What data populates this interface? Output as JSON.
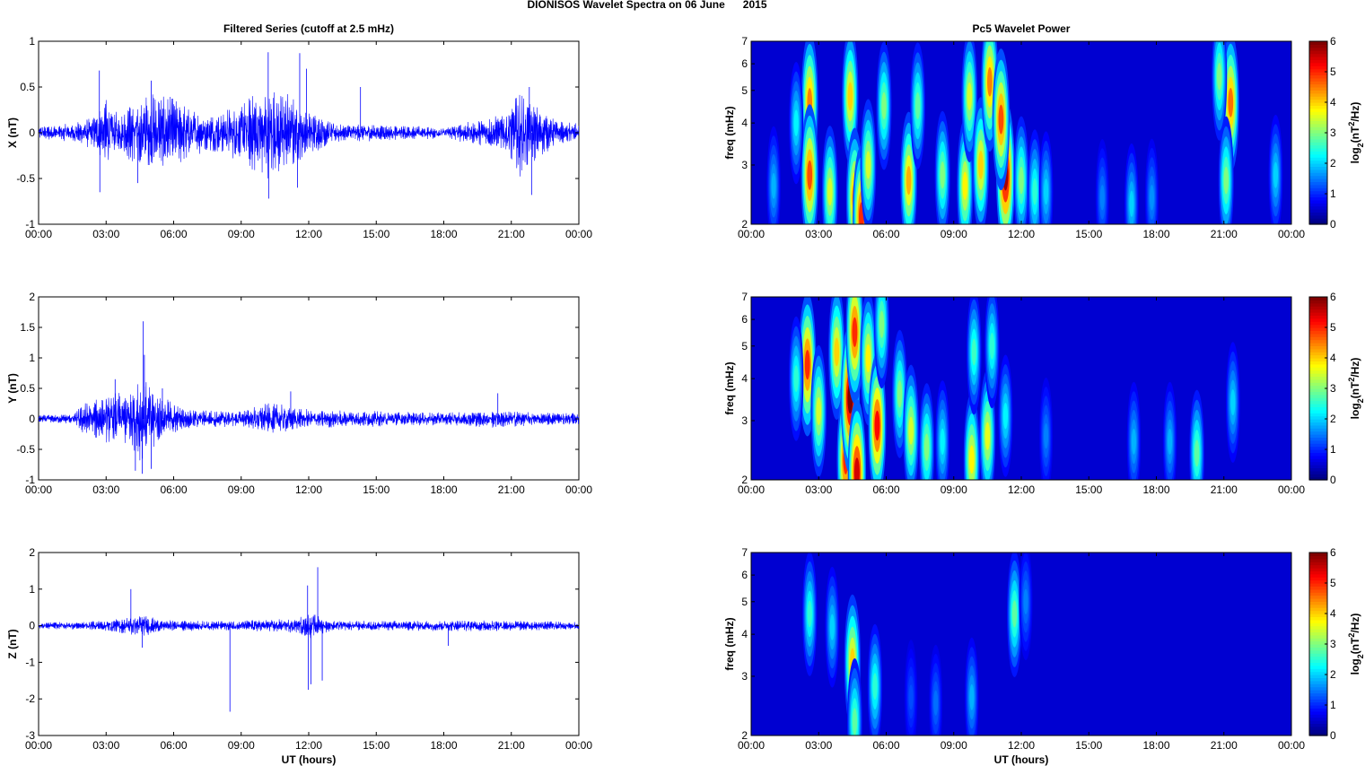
{
  "figure": {
    "title": "DIONISOS Wavelet Spectra on 06 June      2015",
    "left_column_title": "Filtered Series (cutoff at 2.5 mHz)",
    "right_column_title": "Pc5 Wavelet Power",
    "x_axis_label": "UT (hours)"
  },
  "chart_data": [
    {
      "type": "line",
      "panel": "X",
      "ylabel": "X (nT)",
      "ylim": [
        -1,
        1
      ],
      "yticks": [
        -1,
        -0.5,
        0,
        0.5,
        1
      ],
      "ytick_labels": [
        "-1",
        "-0.5",
        "0",
        "0.5",
        "1"
      ],
      "xlim_hours": [
        0,
        24
      ],
      "xtick_labels": [
        "00:00",
        "03:00",
        "06:00",
        "09:00",
        "12:00",
        "15:00",
        "18:00",
        "21:00",
        "00:00"
      ],
      "color": "#0000ff",
      "envelope": [
        {
          "t": 0,
          "amp": 0.06
        },
        {
          "t": 1.5,
          "amp": 0.08
        },
        {
          "t": 2.5,
          "amp": 0.15
        },
        {
          "t": 3.0,
          "amp": 0.3
        },
        {
          "t": 3.5,
          "amp": 0.18
        },
        {
          "t": 4.5,
          "amp": 0.3
        },
        {
          "t": 5.0,
          "amp": 0.35
        },
        {
          "t": 6.0,
          "amp": 0.3
        },
        {
          "t": 7.5,
          "amp": 0.15
        },
        {
          "t": 9.0,
          "amp": 0.25
        },
        {
          "t": 10.0,
          "amp": 0.4
        },
        {
          "t": 11.0,
          "amp": 0.35
        },
        {
          "t": 12.0,
          "amp": 0.18
        },
        {
          "t": 13.5,
          "amp": 0.08
        },
        {
          "t": 18.0,
          "amp": 0.05
        },
        {
          "t": 20.5,
          "amp": 0.15
        },
        {
          "t": 21.5,
          "amp": 0.4
        },
        {
          "t": 22.0,
          "amp": 0.25
        },
        {
          "t": 23.0,
          "amp": 0.1
        },
        {
          "t": 24.0,
          "amp": 0.08
        }
      ],
      "spikes": [
        {
          "t": 2.7,
          "v": 0.68
        },
        {
          "t": 2.72,
          "v": -0.65
        },
        {
          "t": 4.4,
          "v": -0.55
        },
        {
          "t": 5.0,
          "v": 0.57
        },
        {
          "t": 10.2,
          "v": 0.88
        },
        {
          "t": 10.22,
          "v": -0.72
        },
        {
          "t": 11.6,
          "v": 0.87
        },
        {
          "t": 11.5,
          "v": -0.6
        },
        {
          "t": 11.9,
          "v": 0.7
        },
        {
          "t": 14.3,
          "v": 0.5
        },
        {
          "t": 21.9,
          "v": -0.68
        },
        {
          "t": 21.8,
          "v": 0.5
        }
      ]
    },
    {
      "type": "line",
      "panel": "Y",
      "ylabel": "Y (nT)",
      "ylim": [
        -1,
        2
      ],
      "yticks": [
        -1,
        -0.5,
        0,
        0.5,
        1,
        1.5,
        2
      ],
      "ytick_labels": [
        "-1",
        "-0.5",
        "0",
        "0.5",
        "1",
        "1.5",
        "2"
      ],
      "xlim_hours": [
        0,
        24
      ],
      "xtick_labels": [
        "00:00",
        "03:00",
        "06:00",
        "09:00",
        "12:00",
        "15:00",
        "18:00",
        "21:00",
        "00:00"
      ],
      "color": "#0000ff",
      "envelope": [
        {
          "t": 0,
          "amp": 0.05
        },
        {
          "t": 1.5,
          "amp": 0.06
        },
        {
          "t": 2.0,
          "amp": 0.2
        },
        {
          "t": 3.0,
          "amp": 0.3
        },
        {
          "t": 4.0,
          "amp": 0.4
        },
        {
          "t": 4.6,
          "amp": 0.55
        },
        {
          "t": 5.5,
          "amp": 0.3
        },
        {
          "t": 6.5,
          "amp": 0.12
        },
        {
          "t": 9.0,
          "amp": 0.1
        },
        {
          "t": 10.0,
          "amp": 0.2
        },
        {
          "t": 11.0,
          "amp": 0.18
        },
        {
          "t": 12.0,
          "amp": 0.12
        },
        {
          "t": 18.0,
          "amp": 0.08
        },
        {
          "t": 20.5,
          "amp": 0.12
        },
        {
          "t": 22.0,
          "amp": 0.08
        },
        {
          "t": 24.0,
          "amp": 0.08
        }
      ],
      "spikes": [
        {
          "t": 4.65,
          "v": 1.6
        },
        {
          "t": 4.6,
          "v": -0.9
        },
        {
          "t": 4.7,
          "v": 1.05
        },
        {
          "t": 5.0,
          "v": -0.82
        },
        {
          "t": 3.4,
          "v": 0.65
        },
        {
          "t": 4.3,
          "v": -0.85
        },
        {
          "t": 5.5,
          "v": 0.5
        },
        {
          "t": 11.2,
          "v": 0.45
        },
        {
          "t": 20.4,
          "v": 0.42
        }
      ]
    },
    {
      "type": "line",
      "panel": "Z",
      "ylabel": "Z (nT)",
      "ylim": [
        -3,
        2
      ],
      "yticks": [
        -3,
        -2,
        -1,
        0,
        1,
        2
      ],
      "ytick_labels": [
        "-3",
        "-2",
        "-1",
        "0",
        "1",
        "2"
      ],
      "xlim_hours": [
        0,
        24
      ],
      "xtick_labels": [
        "00:00",
        "03:00",
        "06:00",
        "09:00",
        "12:00",
        "15:00",
        "18:00",
        "21:00",
        "00:00"
      ],
      "color": "#0000ff",
      "envelope": [
        {
          "t": 0,
          "amp": 0.07
        },
        {
          "t": 2.5,
          "amp": 0.1
        },
        {
          "t": 3.5,
          "amp": 0.15
        },
        {
          "t": 4.6,
          "amp": 0.25
        },
        {
          "t": 5.5,
          "amp": 0.12
        },
        {
          "t": 8.0,
          "amp": 0.1
        },
        {
          "t": 11.5,
          "amp": 0.15
        },
        {
          "t": 12.0,
          "amp": 0.3
        },
        {
          "t": 13.0,
          "amp": 0.1
        },
        {
          "t": 20.0,
          "amp": 0.12
        },
        {
          "t": 24.0,
          "amp": 0.08
        }
      ],
      "spikes": [
        {
          "t": 4.1,
          "v": 1.0
        },
        {
          "t": 4.6,
          "v": -0.6
        },
        {
          "t": 8.5,
          "v": -2.35
        },
        {
          "t": 11.95,
          "v": 1.1
        },
        {
          "t": 11.98,
          "v": -1.75
        },
        {
          "t": 12.1,
          "v": -1.6
        },
        {
          "t": 12.4,
          "v": 1.6
        },
        {
          "t": 12.6,
          "v": -1.5
        },
        {
          "t": 18.2,
          "v": -0.55
        }
      ]
    },
    {
      "type": "heatmap",
      "panel": "X",
      "ylabel": "freq (mHz)",
      "yscale": "log",
      "ylim": [
        2,
        7
      ],
      "yticks": [
        2,
        3,
        4,
        5,
        6,
        7
      ],
      "ytick_labels": [
        "2",
        "3",
        "4",
        "5",
        "6",
        "7"
      ],
      "xlim_hours": [
        0,
        24
      ],
      "xtick_labels": [
        "00:00",
        "03:00",
        "06:00",
        "09:00",
        "12:00",
        "15:00",
        "18:00",
        "21:00",
        "00:00"
      ],
      "colorbar": {
        "label": "log2(nT2/Hz)",
        "range": [
          0,
          6
        ],
        "ticks": [
          "0",
          "1",
          "2",
          "3",
          "4",
          "5",
          "6"
        ]
      },
      "blobs": [
        {
          "t": 2.6,
          "f": 4.6,
          "power": 4.5
        },
        {
          "t": 2.6,
          "f": 2.8,
          "power": 4.8
        },
        {
          "t": 3.5,
          "f": 2.5,
          "power": 3.5
        },
        {
          "t": 4.4,
          "f": 4.8,
          "power": 4.0
        },
        {
          "t": 4.6,
          "f": 2.4,
          "power": 4.5
        },
        {
          "t": 4.9,
          "f": 2.1,
          "power": 5.0
        },
        {
          "t": 5.2,
          "f": 3.0,
          "power": 3.5
        },
        {
          "t": 5.9,
          "f": 4.5,
          "power": 3.0
        },
        {
          "t": 7.0,
          "f": 2.7,
          "power": 4.2
        },
        {
          "t": 7.4,
          "f": 4.5,
          "power": 2.8
        },
        {
          "t": 8.5,
          "f": 2.8,
          "power": 3.0
        },
        {
          "t": 9.5,
          "f": 2.6,
          "power": 3.8
        },
        {
          "t": 9.7,
          "f": 4.8,
          "power": 3.5
        },
        {
          "t": 10.2,
          "f": 3.0,
          "power": 4.0
        },
        {
          "t": 10.6,
          "f": 5.3,
          "power": 4.5
        },
        {
          "t": 11.3,
          "f": 2.8,
          "power": 5.8
        },
        {
          "t": 11.1,
          "f": 4.1,
          "power": 4.8
        },
        {
          "t": 12.0,
          "f": 2.7,
          "power": 3.0
        },
        {
          "t": 12.6,
          "f": 2.5,
          "power": 2.5
        },
        {
          "t": 13.1,
          "f": 2.5,
          "power": 2.0
        },
        {
          "t": 16.9,
          "f": 2.3,
          "power": 2.0
        },
        {
          "t": 17.8,
          "f": 2.4,
          "power": 1.6
        },
        {
          "t": 15.6,
          "f": 2.4,
          "power": 1.5
        },
        {
          "t": 21.3,
          "f": 4.6,
          "power": 4.6
        },
        {
          "t": 21.1,
          "f": 2.7,
          "power": 3.0
        },
        {
          "t": 20.8,
          "f": 5.5,
          "power": 3.0
        },
        {
          "t": 23.3,
          "f": 2.8,
          "power": 2.0
        },
        {
          "t": 1.0,
          "f": 2.6,
          "power": 1.8
        },
        {
          "t": 2.0,
          "f": 4.0,
          "power": 2.2
        }
      ]
    },
    {
      "type": "heatmap",
      "panel": "Y",
      "ylabel": "freq (mHz)",
      "yscale": "log",
      "ylim": [
        2,
        7
      ],
      "yticks": [
        2,
        3,
        4,
        5,
        6,
        7
      ],
      "ytick_labels": [
        "2",
        "3",
        "4",
        "5",
        "6",
        "7"
      ],
      "xlim_hours": [
        0,
        24
      ],
      "xtick_labels": [
        "00:00",
        "03:00",
        "06:00",
        "09:00",
        "12:00",
        "15:00",
        "18:00",
        "21:00",
        "00:00"
      ],
      "colorbar": {
        "label": "log2(nT2/Hz)",
        "range": [
          0,
          6
        ],
        "ticks": [
          "0",
          "1",
          "2",
          "3",
          "4",
          "5",
          "6"
        ]
      },
      "blobs": [
        {
          "t": 2.5,
          "f": 4.4,
          "power": 5.0
        },
        {
          "t": 3.0,
          "f": 3.2,
          "power": 3.5
        },
        {
          "t": 2.0,
          "f": 4.0,
          "power": 2.5
        },
        {
          "t": 3.8,
          "f": 4.8,
          "power": 4.0
        },
        {
          "t": 4.2,
          "f": 2.3,
          "power": 5.0
        },
        {
          "t": 4.4,
          "f": 3.5,
          "power": 6.0
        },
        {
          "t": 4.6,
          "f": 5.5,
          "power": 5.0
        },
        {
          "t": 4.7,
          "f": 2.1,
          "power": 5.5
        },
        {
          "t": 5.2,
          "f": 4.6,
          "power": 3.8
        },
        {
          "t": 5.6,
          "f": 2.9,
          "power": 5.2
        },
        {
          "t": 5.8,
          "f": 5.8,
          "power": 3.0
        },
        {
          "t": 6.6,
          "f": 3.6,
          "power": 3.0
        },
        {
          "t": 7.1,
          "f": 2.8,
          "power": 3.5
        },
        {
          "t": 7.8,
          "f": 2.5,
          "power": 3.0
        },
        {
          "t": 8.5,
          "f": 2.6,
          "power": 2.2
        },
        {
          "t": 9.8,
          "f": 2.3,
          "power": 3.8
        },
        {
          "t": 9.9,
          "f": 4.8,
          "power": 2.6
        },
        {
          "t": 10.5,
          "f": 2.7,
          "power": 3.6
        },
        {
          "t": 10.7,
          "f": 5.0,
          "power": 2.5
        },
        {
          "t": 11.3,
          "f": 3.1,
          "power": 2.2
        },
        {
          "t": 13.1,
          "f": 2.7,
          "power": 1.5
        },
        {
          "t": 17.0,
          "f": 2.6,
          "power": 1.8
        },
        {
          "t": 18.6,
          "f": 2.6,
          "power": 1.8
        },
        {
          "t": 19.8,
          "f": 2.4,
          "power": 2.8
        },
        {
          "t": 21.4,
          "f": 3.4,
          "power": 2.0
        }
      ]
    },
    {
      "type": "heatmap",
      "panel": "Z",
      "ylabel": "freq (mHz)",
      "yscale": "log",
      "ylim": [
        2,
        7
      ],
      "yticks": [
        2,
        3,
        4,
        5,
        6,
        7
      ],
      "ytick_labels": [
        "2",
        "3",
        "4",
        "5",
        "6",
        "7"
      ],
      "xlim_hours": [
        0,
        24
      ],
      "xtick_labels": [
        "00:00",
        "03:00",
        "06:00",
        "09:00",
        "12:00",
        "15:00",
        "18:00",
        "21:00",
        "00:00"
      ],
      "colorbar": {
        "label": "log2(nT2/Hz)",
        "range": [
          0,
          6
        ],
        "ticks": [
          "0",
          "1",
          "2",
          "3",
          "4",
          "5",
          "6"
        ]
      },
      "blobs": [
        {
          "t": 2.6,
          "f": 4.6,
          "power": 2.5
        },
        {
          "t": 3.6,
          "f": 4.2,
          "power": 2.0
        },
        {
          "t": 4.5,
          "f": 3.3,
          "power": 4.0
        },
        {
          "t": 4.6,
          "f": 2.2,
          "power": 2.8
        },
        {
          "t": 5.5,
          "f": 2.8,
          "power": 2.5
        },
        {
          "t": 7.1,
          "f": 2.6,
          "power": 1.2
        },
        {
          "t": 8.2,
          "f": 2.5,
          "power": 1.4
        },
        {
          "t": 9.8,
          "f": 2.6,
          "power": 1.8
        },
        {
          "t": 11.7,
          "f": 4.6,
          "power": 2.8
        },
        {
          "t": 12.2,
          "f": 5.0,
          "power": 1.5
        }
      ]
    }
  ]
}
